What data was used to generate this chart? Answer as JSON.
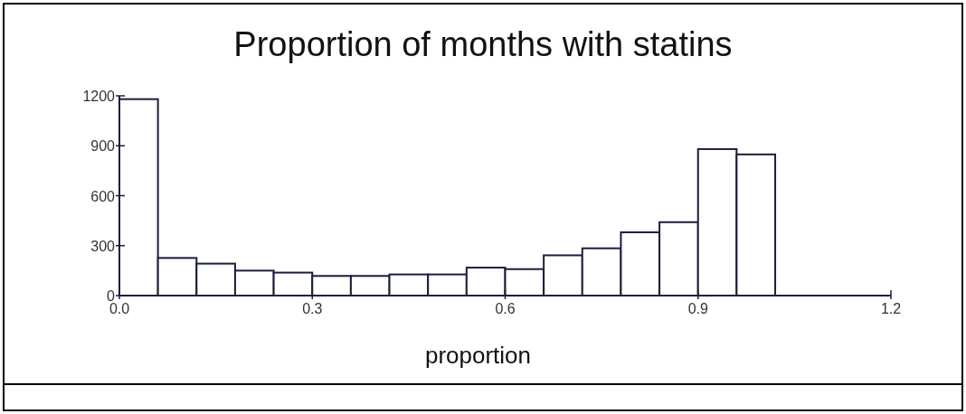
{
  "chart_data": {
    "type": "histogram",
    "title": "Proportion of months with statins",
    "xlabel": "proportion",
    "bins": [
      0,
      0.06,
      0.12,
      0.18,
      0.24,
      0.3,
      0.36,
      0.42,
      0.48,
      0.54,
      0.6,
      0.66,
      0.72,
      0.78,
      0.84,
      0.9,
      0.96,
      1.02
    ],
    "values": [
      1180,
      226,
      192,
      150,
      138,
      118,
      118,
      127,
      127,
      168,
      159,
      242,
      284,
      380,
      441,
      880,
      848
    ],
    "color": "#ffffff",
    "xlim": [
      0,
      1.2
    ],
    "xticks": [
      {
        "value": 0,
        "label": "0.0"
      },
      0.3,
      0.6,
      0.9,
      1.2
    ],
    "ylim": [
      0,
      1200
    ],
    "yticks": [
      0,
      300,
      600,
      900,
      1200
    ],
    "grid": false
  }
}
